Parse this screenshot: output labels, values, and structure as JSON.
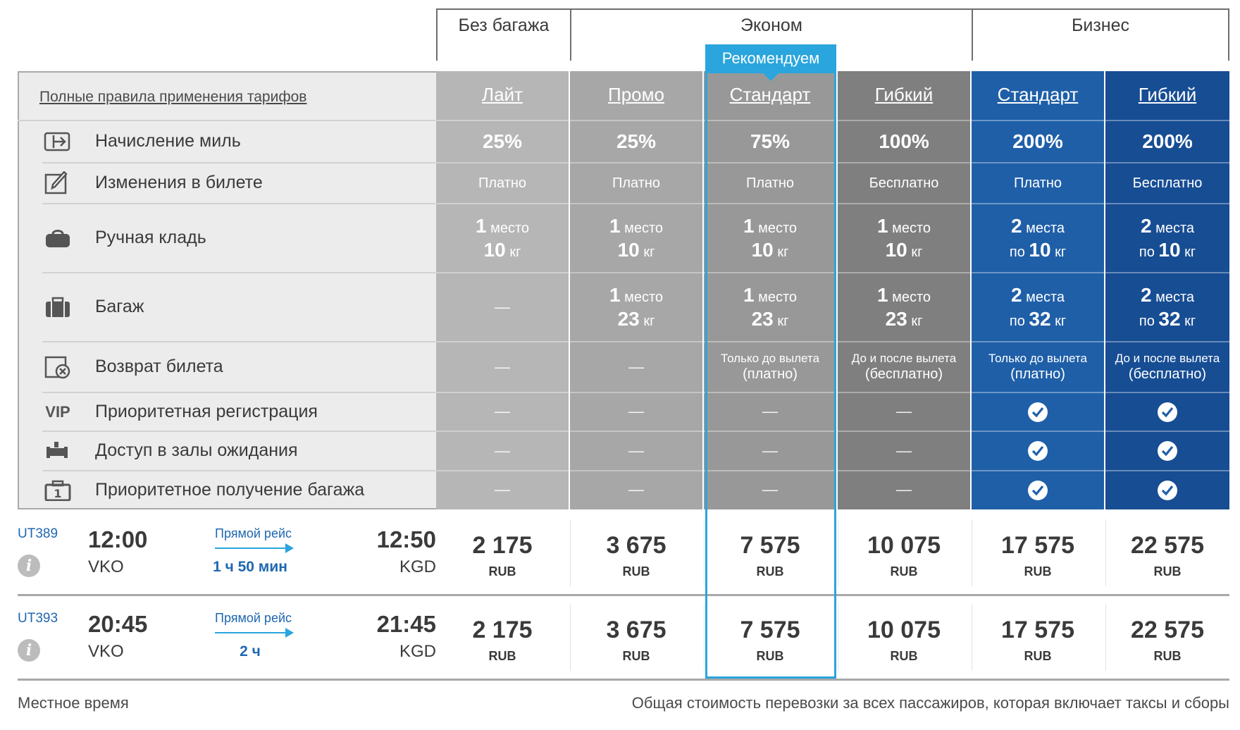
{
  "groups": [
    {
      "label": "Без багажа"
    },
    {
      "label": "Эконом"
    },
    {
      "label": "Бизнес"
    }
  ],
  "recommend_badge": "Рекомендуем",
  "rules_link": "Полные правила применения тарифов",
  "features": [
    {
      "label": "Начисление миль",
      "icon": "miles-icon"
    },
    {
      "label": "Изменения в билете",
      "icon": "edit-ticket-icon"
    },
    {
      "label": "Ручная кладь",
      "icon": "hand-bag-icon"
    },
    {
      "label": "Багаж",
      "icon": "suitcase-icon"
    },
    {
      "label": "Возврат билета",
      "icon": "refund-icon"
    },
    {
      "label": "Приоритетная регистрация",
      "icon": "vip-icon",
      "icon_text": "VIP"
    },
    {
      "label": "Доступ в залы ожидания",
      "icon": "lounge-icon"
    },
    {
      "label": "Приоритетное получение багажа",
      "icon": "priority-baggage-icon"
    }
  ],
  "tariffs": [
    {
      "name": "Лайт",
      "color": "#b6b6b6",
      "miles": "25%",
      "changes": "Платно",
      "hand": {
        "n": "1",
        "nu": "место",
        "w": "10",
        "wu": "кг",
        "prefix": ""
      },
      "bag": null,
      "refund": null,
      "vip": false,
      "lounge": false,
      "priority": false
    },
    {
      "name": "Промо",
      "color": "#a7a7a7",
      "miles": "25%",
      "changes": "Платно",
      "hand": {
        "n": "1",
        "nu": "место",
        "w": "10",
        "wu": "кг",
        "prefix": ""
      },
      "bag": {
        "n": "1",
        "nu": "место",
        "w": "23",
        "wu": "кг",
        "prefix": ""
      },
      "refund": null,
      "vip": false,
      "lounge": false,
      "priority": false
    },
    {
      "name": "Стандарт",
      "color": "#989898",
      "miles": "75%",
      "changes": "Платно",
      "hand": {
        "n": "1",
        "nu": "место",
        "w": "10",
        "wu": "кг",
        "prefix": ""
      },
      "bag": {
        "n": "1",
        "nu": "место",
        "w": "23",
        "wu": "кг",
        "prefix": ""
      },
      "refund": {
        "line1": "Только до вылета",
        "line2": "(платно)"
      },
      "vip": false,
      "lounge": false,
      "priority": false
    },
    {
      "name": "Гибкий",
      "color": "#7f7f7f",
      "miles": "100%",
      "changes": "Бесплатно",
      "hand": {
        "n": "1",
        "nu": "место",
        "w": "10",
        "wu": "кг",
        "prefix": ""
      },
      "bag": {
        "n": "1",
        "nu": "место",
        "w": "23",
        "wu": "кг",
        "prefix": ""
      },
      "refund": {
        "line1": "До и после вылета",
        "line2": "(бесплатно)"
      },
      "vip": false,
      "lounge": false,
      "priority": false
    },
    {
      "name": "Стандарт",
      "color": "#1f5fa8",
      "miles": "200%",
      "changes": "Платно",
      "hand": {
        "n": "2",
        "nu": "места",
        "w": "10",
        "wu": "кг",
        "prefix": "по"
      },
      "bag": {
        "n": "2",
        "nu": "места",
        "w": "32",
        "wu": "кг",
        "prefix": "по"
      },
      "refund": {
        "line1": "Только до вылета",
        "line2": "(платно)"
      },
      "vip": true,
      "lounge": true,
      "priority": true
    },
    {
      "name": "Гибкий",
      "color": "#174d93",
      "miles": "200%",
      "changes": "Бесплатно",
      "hand": {
        "n": "2",
        "nu": "места",
        "w": "10",
        "wu": "кг",
        "prefix": "по"
      },
      "bag": {
        "n": "2",
        "nu": "места",
        "w": "32",
        "wu": "кг",
        "prefix": "по"
      },
      "refund": {
        "line1": "До и после вылета",
        "line2": "(бесплатно)"
      },
      "vip": true,
      "lounge": true,
      "priority": true
    }
  ],
  "dash": "—",
  "flights": [
    {
      "number": "UT389",
      "dep_time": "12:00",
      "dep_airport": "VKO",
      "arr_time": "12:50",
      "arr_airport": "KGD",
      "direct_label": "Прямой рейс",
      "duration": "1 ч 50 мин",
      "prices": [
        "2 175",
        "3 675",
        "7 575",
        "10 075",
        "17 575",
        "22 575"
      ],
      "currency": "RUB"
    },
    {
      "number": "UT393",
      "dep_time": "20:45",
      "dep_airport": "VKO",
      "arr_time": "21:45",
      "arr_airport": "KGD",
      "direct_label": "Прямой рейс",
      "duration": "2 ч",
      "prices": [
        "2 175",
        "3 675",
        "7 575",
        "10 075",
        "17 575",
        "22 575"
      ],
      "currency": "RUB"
    }
  ],
  "footer": {
    "left": "Местное время",
    "right": "Общая стоимость перевозки за всех пассажиров, которая включает таксы и сборы"
  }
}
